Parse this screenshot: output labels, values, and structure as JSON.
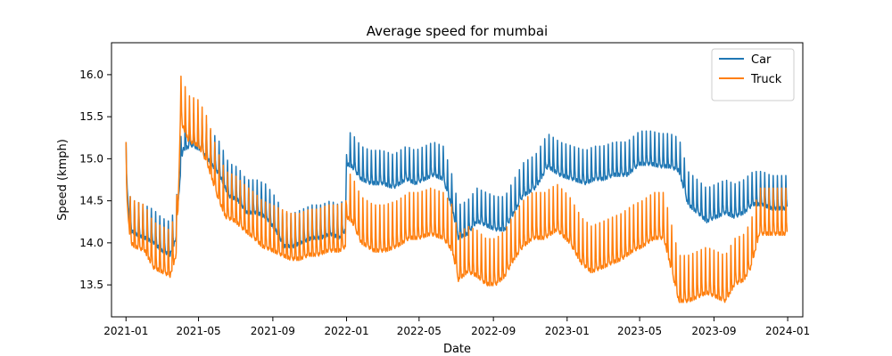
{
  "chart_data": {
    "type": "line",
    "title": "Average speed for mumbai",
    "xlabel": "Date",
    "ylabel": "Speed (kmph)",
    "xlim": [
      "2020-12-08",
      "2024-01-26"
    ],
    "ylim": [
      13.12,
      16.38
    ],
    "x_ticks": [
      "2021-01",
      "2021-05",
      "2021-09",
      "2022-01",
      "2022-05",
      "2022-09",
      "2023-01",
      "2023-05",
      "2023-09",
      "2024-01"
    ],
    "y_ticks": [
      13.5,
      14.0,
      14.5,
      15.0,
      15.5,
      16.0
    ],
    "y_tick_labels": [
      "13.5",
      "14.0",
      "14.5",
      "15.0",
      "15.5",
      "16.0"
    ],
    "grid": false,
    "legend": "top-right",
    "series": [
      {
        "name": "Car",
        "color": "#1f77b4",
        "weekly_peak": 0.35,
        "x": [
          "2021-01-01",
          "2021-01-08",
          "2021-01-15",
          "2021-02-01",
          "2021-02-15",
          "2021-03-01",
          "2021-03-15",
          "2021-03-25",
          "2021-03-29",
          "2021-04-05",
          "2021-04-20",
          "2021-05-05",
          "2021-05-20",
          "2021-06-05",
          "2021-06-20",
          "2021-07-05",
          "2021-07-20",
          "2021-08-05",
          "2021-08-20",
          "2021-09-05",
          "2021-09-20",
          "2021-10-05",
          "2021-10-20",
          "2021-11-05",
          "2021-11-20",
          "2021-12-05",
          "2021-12-20",
          "2021-12-31",
          "2022-01-01",
          "2022-01-10",
          "2022-01-25",
          "2022-02-10",
          "2022-03-01",
          "2022-03-20",
          "2022-04-10",
          "2022-04-25",
          "2022-05-10",
          "2022-05-25",
          "2022-06-10",
          "2022-06-25",
          "2022-07-05",
          "2022-07-20",
          "2022-08-05",
          "2022-08-20",
          "2022-09-05",
          "2022-09-20",
          "2022-10-01",
          "2022-10-20",
          "2022-11-10",
          "2022-11-30",
          "2022-12-20",
          "2023-01-10",
          "2023-02-01",
          "2023-02-15",
          "2023-03-01",
          "2023-03-20",
          "2023-04-10",
          "2023-05-01",
          "2023-05-20",
          "2023-06-05",
          "2023-06-20",
          "2023-07-05",
          "2023-07-20",
          "2023-08-05",
          "2023-08-20",
          "2023-09-05",
          "2023-09-20",
          "2023-10-05",
          "2023-10-20",
          "2023-11-05",
          "2023-11-20",
          "2023-12-05",
          "2023-12-20",
          "2023-12-31"
        ],
        "values": [
          14.85,
          14.2,
          14.15,
          14.1,
          14.05,
          13.95,
          13.9,
          14.1,
          14.6,
          15.15,
          15.2,
          15.15,
          15.0,
          14.85,
          14.6,
          14.55,
          14.4,
          14.4,
          14.35,
          14.2,
          14.0,
          14.0,
          14.05,
          14.1,
          14.1,
          14.15,
          14.1,
          14.2,
          14.98,
          14.95,
          14.8,
          14.75,
          14.75,
          14.7,
          14.8,
          14.75,
          14.8,
          14.85,
          14.8,
          14.45,
          14.1,
          14.15,
          14.3,
          14.25,
          14.2,
          14.2,
          14.35,
          14.6,
          14.7,
          14.95,
          14.85,
          14.8,
          14.75,
          14.8,
          14.8,
          14.85,
          14.85,
          14.98,
          14.98,
          14.95,
          14.95,
          14.9,
          14.5,
          14.4,
          14.3,
          14.35,
          14.4,
          14.35,
          14.4,
          14.5,
          14.5,
          14.45,
          14.45,
          14.45
        ]
      },
      {
        "name": "Truck",
        "color": "#ff7f0e",
        "weekly_peak": 0.5,
        "x": [
          "2021-01-01",
          "2021-01-08",
          "2021-01-15",
          "2021-02-01",
          "2021-02-15",
          "2021-03-01",
          "2021-03-15",
          "2021-03-25",
          "2021-03-28",
          "2021-04-01",
          "2021-04-15",
          "2021-05-01",
          "2021-05-15",
          "2021-06-01",
          "2021-06-15",
          "2021-07-01",
          "2021-07-15",
          "2021-08-01",
          "2021-08-15",
          "2021-09-01",
          "2021-09-15",
          "2021-10-01",
          "2021-10-15",
          "2021-11-01",
          "2021-11-15",
          "2021-12-01",
          "2021-12-20",
          "2021-12-31",
          "2022-01-01",
          "2022-01-10",
          "2022-01-25",
          "2022-02-15",
          "2022-03-05",
          "2022-03-25",
          "2022-04-15",
          "2022-05-01",
          "2022-05-20",
          "2022-06-10",
          "2022-06-25",
          "2022-07-05",
          "2022-07-20",
          "2022-08-05",
          "2022-08-20",
          "2022-09-05",
          "2022-09-20",
          "2022-10-05",
          "2022-10-20",
          "2022-11-05",
          "2022-11-25",
          "2022-12-15",
          "2023-01-05",
          "2023-01-25",
          "2023-02-10",
          "2023-02-28",
          "2023-03-15",
          "2023-04-01",
          "2023-04-20",
          "2023-05-05",
          "2023-05-25",
          "2023-06-10",
          "2023-06-20",
          "2023-07-05",
          "2023-07-20",
          "2023-08-05",
          "2023-08-20",
          "2023-09-05",
          "2023-09-20",
          "2023-10-05",
          "2023-10-20",
          "2023-11-01",
          "2023-11-15",
          "2023-12-01",
          "2023-12-15",
          "2023-12-31"
        ],
        "values": [
          14.7,
          14.05,
          14.0,
          13.95,
          13.75,
          13.7,
          13.65,
          13.9,
          14.4,
          15.5,
          15.25,
          15.2,
          15.0,
          14.6,
          14.35,
          14.3,
          14.2,
          14.1,
          14.0,
          13.95,
          13.9,
          13.85,
          13.85,
          13.9,
          13.9,
          13.95,
          13.95,
          14.0,
          14.35,
          14.3,
          14.05,
          13.95,
          13.95,
          14.0,
          14.1,
          14.1,
          14.15,
          14.1,
          13.95,
          13.6,
          13.7,
          13.65,
          13.55,
          13.55,
          13.65,
          13.85,
          14.0,
          14.1,
          14.1,
          14.2,
          14.05,
          13.8,
          13.7,
          13.75,
          13.8,
          13.85,
          13.95,
          14.0,
          14.1,
          14.1,
          13.8,
          13.35,
          13.35,
          13.4,
          13.45,
          13.4,
          13.35,
          13.55,
          13.6,
          13.75,
          14.15,
          14.15,
          14.15,
          14.15
        ]
      }
    ]
  }
}
